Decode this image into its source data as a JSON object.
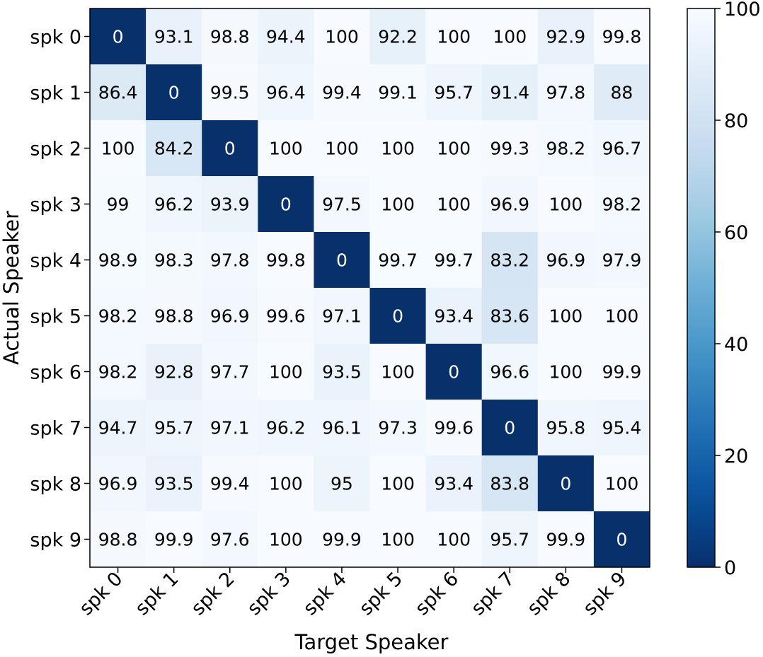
{
  "chart_data": {
    "type": "heatmap",
    "title": "",
    "xlabel": "Target Speaker",
    "ylabel": "Actual Speaker",
    "x_categories": [
      "spk 0",
      "spk 1",
      "spk 2",
      "spk 3",
      "spk 4",
      "spk 5",
      "spk 6",
      "spk 7",
      "spk 8",
      "spk 9"
    ],
    "y_categories": [
      "spk 0",
      "spk 1",
      "spk 2",
      "spk 3",
      "spk 4",
      "spk 5",
      "spk 6",
      "spk 7",
      "spk 8",
      "spk 9"
    ],
    "values": [
      [
        0,
        93.1,
        98.8,
        94.4,
        100,
        92.2,
        100,
        100,
        92.9,
        99.8
      ],
      [
        86.4,
        0,
        99.5,
        96.4,
        99.4,
        99.1,
        95.7,
        91.4,
        97.8,
        88
      ],
      [
        100,
        84.2,
        0,
        100,
        100,
        100,
        100,
        99.3,
        98.2,
        96.7
      ],
      [
        99,
        96.2,
        93.9,
        0,
        97.5,
        100,
        100,
        96.9,
        100,
        98.2
      ],
      [
        98.9,
        98.3,
        97.8,
        99.8,
        0,
        99.7,
        99.7,
        83.2,
        96.9,
        97.9
      ],
      [
        98.2,
        98.8,
        96.9,
        99.6,
        97.1,
        0,
        93.4,
        83.6,
        100,
        100
      ],
      [
        98.2,
        92.8,
        97.7,
        100,
        93.5,
        100,
        0,
        96.6,
        100,
        99.9
      ],
      [
        94.7,
        95.7,
        97.1,
        96.2,
        96.1,
        97.3,
        99.6,
        0,
        95.8,
        95.4
      ],
      [
        96.9,
        93.5,
        99.4,
        100,
        95,
        100,
        93.4,
        83.8,
        0,
        100
      ],
      [
        98.8,
        99.9,
        97.6,
        100,
        99.9,
        100,
        100,
        95.7,
        99.9,
        0
      ]
    ],
    "colorbar": {
      "min": 0,
      "max": 100,
      "ticks": [
        0,
        20,
        40,
        60,
        80,
        100
      ]
    },
    "colormap": "Blues"
  }
}
